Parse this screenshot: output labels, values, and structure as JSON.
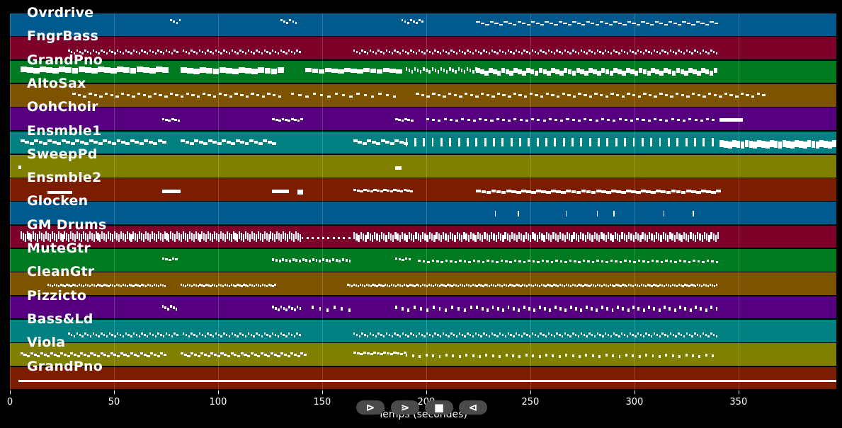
{
  "tracks": [
    {
      "name": "Ovrdrive",
      "color": "#005a8e",
      "pattern": "sparse-high"
    },
    {
      "name": "FngrBass",
      "color": "#7d0028",
      "pattern": "dense-dots"
    },
    {
      "name": "GrandPno",
      "color": "#007a20",
      "pattern": "thick-bars"
    },
    {
      "name": "AltoSax",
      "color": "#7d5300",
      "pattern": "dashes"
    },
    {
      "name": "OohChoir",
      "color": "#560080",
      "pattern": "sparse-dashes"
    },
    {
      "name": "Ensmble1",
      "color": "#008080",
      "pattern": "dense-bars"
    },
    {
      "name": "SweepPd",
      "color": "#7f7f00",
      "pattern": "single"
    },
    {
      "name": "Ensmble2",
      "color": "#7c1c00",
      "pattern": "bars"
    },
    {
      "name": "Glocken",
      "color": "#005a8e",
      "pattern": "ticks"
    },
    {
      "name": "GM Drums",
      "color": "#7d0028",
      "pattern": "drums"
    },
    {
      "name": "MuteGtr",
      "color": "#007a20",
      "pattern": "sparse-dots"
    },
    {
      "name": "CleanGtr",
      "color": "#7d5300",
      "pattern": "line-dots"
    },
    {
      "name": "Pizzicto",
      "color": "#560080",
      "pattern": "vees"
    },
    {
      "name": "Bass&Ld",
      "color": "#008080",
      "pattern": "dense-dots"
    },
    {
      "name": "Viola",
      "color": "#7f7f00",
      "pattern": "dots"
    },
    {
      "name": "GrandPno",
      "color": "#7c1c00",
      "pattern": "long-line"
    }
  ],
  "xaxis": {
    "label": "Temps (secondes)",
    "ticks": [
      "0",
      "50",
      "100",
      "150",
      "200",
      "250",
      "300",
      "350"
    ],
    "tick_values": [
      0,
      50,
      100,
      150,
      200,
      250,
      300,
      350
    ],
    "xlim": [
      0,
      397
    ]
  },
  "controls": {
    "play_label": "⊳",
    "forward_label": "⋗",
    "stop_label": "■",
    "back_label": "⊲"
  }
}
